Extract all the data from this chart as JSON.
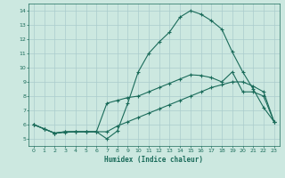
{
  "xlabel": "Humidex (Indice chaleur)",
  "bg_color": "#cce8e0",
  "grid_color": "#aacccc",
  "line_color": "#1a6b5a",
  "xlim": [
    -0.5,
    23.5
  ],
  "ylim": [
    4.5,
    14.5
  ],
  "xticks": [
    0,
    1,
    2,
    3,
    4,
    5,
    6,
    7,
    8,
    9,
    10,
    11,
    12,
    13,
    14,
    15,
    16,
    17,
    18,
    19,
    20,
    21,
    22,
    23
  ],
  "yticks": [
    5,
    6,
    7,
    8,
    9,
    10,
    11,
    12,
    13,
    14
  ],
  "line1_x": [
    0,
    1,
    2,
    3,
    4,
    5,
    6,
    7,
    8,
    9,
    10,
    11,
    12,
    13,
    14,
    15,
    16,
    17,
    18,
    19,
    20,
    21,
    22,
    23
  ],
  "line1_y": [
    6.0,
    5.7,
    5.4,
    5.45,
    5.5,
    5.5,
    5.5,
    5.0,
    5.55,
    7.5,
    9.7,
    11.0,
    11.8,
    12.5,
    13.55,
    14.0,
    13.75,
    13.3,
    12.7,
    11.1,
    9.7,
    8.5,
    7.2,
    6.2
  ],
  "line2_x": [
    0,
    1,
    2,
    3,
    4,
    5,
    6,
    7,
    8,
    9,
    10,
    11,
    12,
    13,
    14,
    15,
    16,
    17,
    18,
    19,
    20,
    21,
    22,
    23
  ],
  "line2_y": [
    6.0,
    5.7,
    5.4,
    5.5,
    5.5,
    5.5,
    5.5,
    7.5,
    7.7,
    7.9,
    8.0,
    8.3,
    8.6,
    8.9,
    9.2,
    9.5,
    9.45,
    9.3,
    9.0,
    9.7,
    8.3,
    8.3,
    8.0,
    6.2
  ],
  "line3_x": [
    0,
    1,
    2,
    3,
    4,
    5,
    6,
    7,
    8,
    9,
    10,
    11,
    12,
    13,
    14,
    15,
    16,
    17,
    18,
    19,
    20,
    21,
    22,
    23
  ],
  "line3_y": [
    6.0,
    5.7,
    5.4,
    5.5,
    5.5,
    5.5,
    5.5,
    5.5,
    5.9,
    6.2,
    6.5,
    6.8,
    7.1,
    7.4,
    7.7,
    8.0,
    8.3,
    8.6,
    8.8,
    9.0,
    9.0,
    8.7,
    8.3,
    6.2
  ],
  "marker": "+",
  "markersize": 3,
  "linewidth": 0.8
}
